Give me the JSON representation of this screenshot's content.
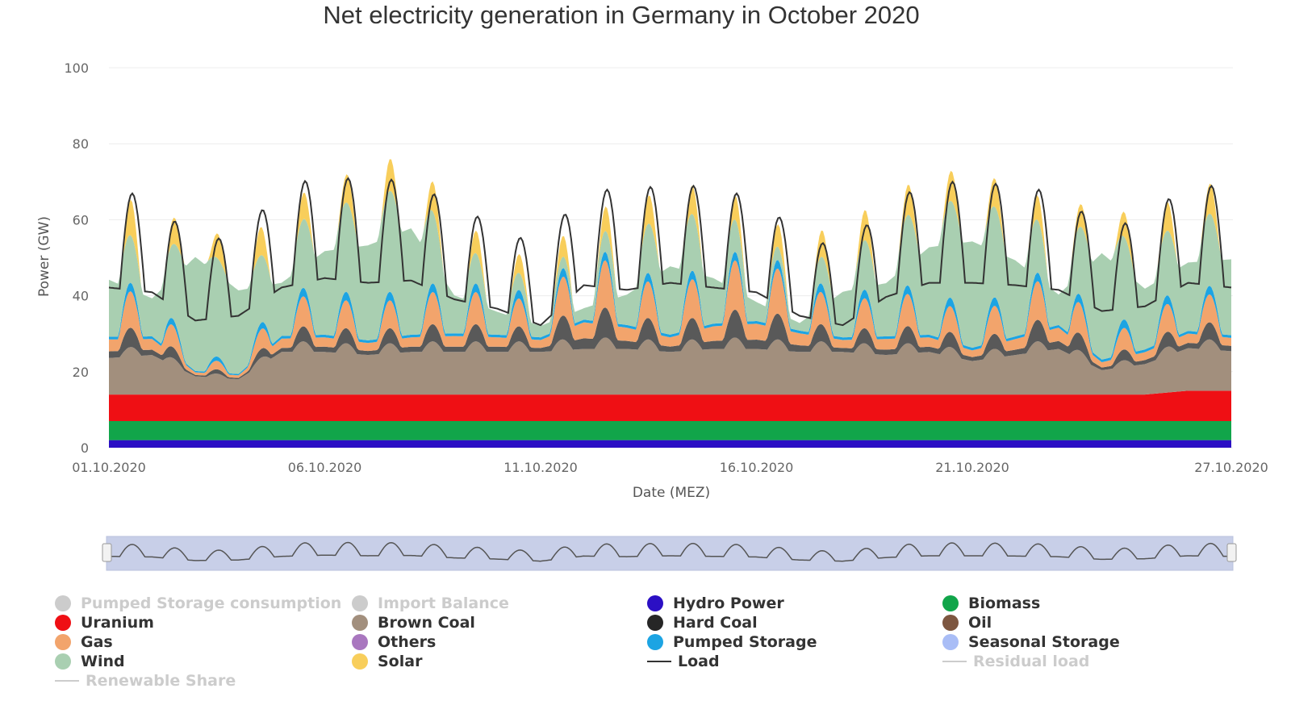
{
  "chart_data": {
    "type": "area",
    "title": "Net electricity generation in Germany in October 2020",
    "xlabel": "Date (MEZ)",
    "ylabel": "Power (GW)",
    "ylim": [
      0,
      100
    ],
    "yticks": [
      "0",
      "20",
      "40",
      "60",
      "80",
      "100"
    ],
    "xticks": [
      "01.10.2020",
      "06.10.2020",
      "11.10.2020",
      "16.10.2020",
      "21.10.2020",
      "27.10.2020"
    ],
    "grid": true,
    "stacked": true,
    "dates": [
      "01.10",
      "02.10",
      "03.10",
      "04.10",
      "05.10",
      "06.10",
      "07.10",
      "08.10",
      "09.10",
      "10.10",
      "11.10",
      "12.10",
      "13.10",
      "14.10",
      "15.10",
      "16.10",
      "17.10",
      "18.10",
      "19.10",
      "20.10",
      "21.10",
      "22.10",
      "23.10",
      "24.10",
      "25.10",
      "26.10",
      "27.10"
    ],
    "series": [
      {
        "name": "Hydro Power",
        "color": "#2b0fc4",
        "values": [
          2,
          2,
          2,
          2,
          2,
          2,
          2,
          2,
          2,
          2,
          2,
          2,
          2,
          2,
          2,
          2,
          2,
          2,
          2,
          2,
          2,
          2,
          2,
          2,
          2,
          2,
          2
        ]
      },
      {
        "name": "Biomass",
        "color": "#11a54a",
        "values": [
          5,
          5,
          5,
          5,
          5,
          5,
          5,
          5,
          5,
          5,
          5,
          5,
          5,
          5,
          5,
          5,
          5,
          5,
          5,
          5,
          5,
          5,
          5,
          5,
          5,
          5,
          5
        ]
      },
      {
        "name": "Uranium",
        "color": "#ef0f14",
        "values": [
          7,
          7,
          7,
          7,
          7,
          7,
          7,
          7,
          7,
          7,
          7,
          7,
          7,
          7,
          7,
          7,
          7,
          7,
          7,
          7,
          7,
          7,
          7,
          7,
          7,
          8,
          8
        ]
      },
      {
        "name": "Brown Coal",
        "color": "#a28f7d",
        "values": [
          12,
          13,
          6,
          5,
          14,
          14,
          13,
          14,
          14,
          14,
          14,
          15,
          15,
          14,
          15,
          15,
          14,
          14,
          13,
          14,
          11,
          13,
          15,
          8,
          10,
          14,
          13
        ]
      },
      {
        "name": "Hard Coal",
        "color": "#595959",
        "values": [
          5,
          4,
          1,
          1,
          3,
          4,
          3,
          4,
          4,
          4,
          3,
          8,
          6,
          4,
          6,
          7,
          5,
          3,
          4,
          4,
          3,
          4,
          6,
          2,
          3,
          4,
          4
        ]
      },
      {
        "name": "Gas",
        "color": "#f2a46c",
        "values": [
          9,
          8,
          2,
          2,
          7,
          7,
          6,
          7,
          8,
          7,
          6,
          12,
          10,
          7,
          11,
          12,
          9,
          6,
          8,
          7,
          5,
          8,
          10,
          4,
          6,
          7,
          6
        ]
      },
      {
        "name": "Pumped Storage",
        "color": "#1ca4e3",
        "values": [
          2,
          2,
          1,
          1,
          2,
          2,
          2,
          2,
          2,
          2,
          2,
          2,
          2,
          2,
          2,
          2,
          2,
          2,
          2,
          2,
          2,
          2,
          2,
          2,
          2,
          2,
          2
        ]
      },
      {
        "name": "Wind",
        "color": "#a9cfb1",
        "values": [
          15,
          10,
          30,
          22,
          14,
          22,
          25,
          28,
          10,
          6,
          3,
          3,
          8,
          18,
          12,
          5,
          2,
          12,
          14,
          23,
          28,
          20,
          8,
          28,
          16,
          18,
          20
        ]
      },
      {
        "name": "Solar",
        "color": "#f8ce5b",
        "values": [
          10,
          9,
          5,
          8,
          7,
          7,
          8,
          9,
          7,
          5,
          5,
          6,
          7,
          8,
          7,
          6,
          6,
          8,
          8,
          8,
          8,
          7,
          6,
          6,
          7,
          8,
          8
        ]
      }
    ],
    "load": {
      "name": "Load",
      "color": "#333333",
      "values": [
        68,
        66,
        54,
        56,
        68,
        72,
        70,
        71,
        63,
        59,
        52,
        69,
        67,
        70,
        68,
        66,
        56,
        52,
        64,
        70,
        70,
        69,
        67,
        58,
        60,
        70,
        68
      ]
    }
  },
  "legend": [
    {
      "label": "Pumped Storage consumption",
      "color": "#cccccc",
      "shape": "circle",
      "hidden": true
    },
    {
      "label": "Import Balance",
      "color": "#cccccc",
      "shape": "circle",
      "hidden": true
    },
    {
      "label": "Hydro Power",
      "color": "#2b0fc4",
      "shape": "circle",
      "hidden": false
    },
    {
      "label": "Biomass",
      "color": "#11a54a",
      "shape": "circle",
      "hidden": false
    },
    {
      "label": "Uranium",
      "color": "#ef0f14",
      "shape": "circle",
      "hidden": false
    },
    {
      "label": "Brown Coal",
      "color": "#a28f7d",
      "shape": "circle",
      "hidden": false
    },
    {
      "label": "Hard Coal",
      "color": "#262626",
      "shape": "circle",
      "hidden": false
    },
    {
      "label": "Oil",
      "color": "#7d5640",
      "shape": "circle",
      "hidden": false
    },
    {
      "label": "Gas",
      "color": "#f2a46c",
      "shape": "circle",
      "hidden": false
    },
    {
      "label": "Others",
      "color": "#a977bf",
      "shape": "circle",
      "hidden": false
    },
    {
      "label": "Pumped Storage",
      "color": "#1ca4e3",
      "shape": "circle",
      "hidden": false
    },
    {
      "label": "Seasonal Storage",
      "color": "#a9bdf6",
      "shape": "circle",
      "hidden": false
    },
    {
      "label": "Wind",
      "color": "#a9cfb1",
      "shape": "circle",
      "hidden": false
    },
    {
      "label": "Solar",
      "color": "#f8ce5b",
      "shape": "circle",
      "hidden": false
    },
    {
      "label": "Load",
      "color": "#333333",
      "shape": "line",
      "hidden": false
    },
    {
      "label": "Residual load",
      "color": "#cccccc",
      "shape": "line",
      "hidden": true
    },
    {
      "label": "Renewable Share",
      "color": "#cccccc",
      "shape": "line",
      "hidden": true
    }
  ],
  "navigator": {
    "fill": "#c8cfe8",
    "line_color": "#555555"
  }
}
